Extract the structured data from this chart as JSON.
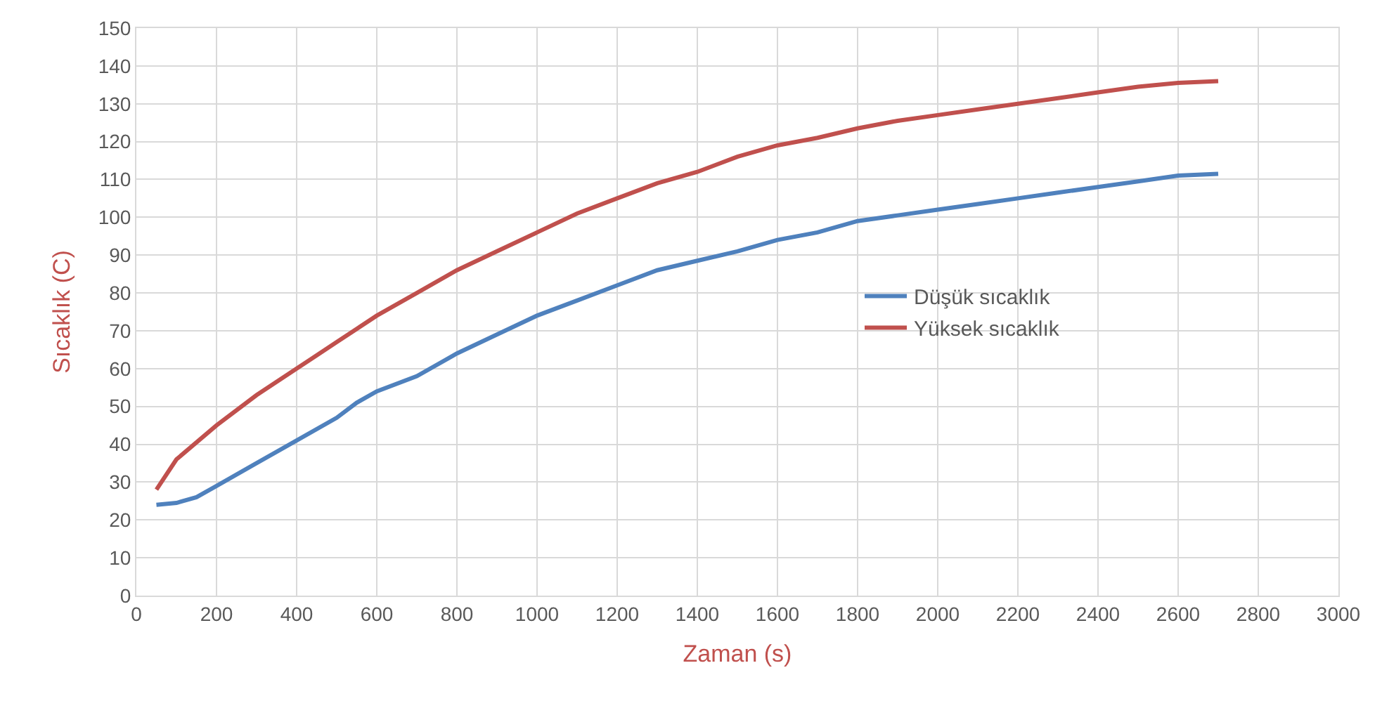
{
  "chart_data": {
    "type": "line",
    "xlabel": "Zaman (s)",
    "ylabel": "Sıcaklık (C)",
    "xlim": [
      0,
      3000
    ],
    "xticks": [
      0,
      200,
      400,
      600,
      800,
      1000,
      1200,
      1400,
      1600,
      1800,
      2000,
      2200,
      2400,
      2600,
      2800,
      3000
    ],
    "ylim": [
      0,
      150
    ],
    "yticks": [
      0,
      10,
      20,
      30,
      40,
      50,
      60,
      70,
      80,
      90,
      100,
      110,
      120,
      130,
      140,
      150
    ],
    "grid": true,
    "legend": "right",
    "marker": "none",
    "line_style": "solid",
    "series": [
      {
        "name": "Düşük sıcaklık",
        "color": "#4f81bd",
        "x": [
          50,
          100,
          150,
          200,
          300,
          400,
          500,
          550,
          600,
          700,
          800,
          900,
          1000,
          1100,
          1200,
          1300,
          1400,
          1500,
          1600,
          1700,
          1800,
          1900,
          2000,
          2100,
          2200,
          2300,
          2400,
          2500,
          2600,
          2700
        ],
        "values": [
          24,
          24.5,
          26,
          29,
          35,
          41,
          47,
          51,
          54,
          58,
          64,
          69,
          74,
          78,
          82,
          86,
          88.5,
          91,
          94,
          96,
          99,
          100.5,
          102,
          103.5,
          105,
          106.5,
          108,
          109.5,
          111,
          111.5
        ]
      },
      {
        "name": "Yüksek sıcaklık",
        "color": "#c0504d",
        "x": [
          50,
          100,
          200,
          300,
          400,
          500,
          600,
          700,
          800,
          900,
          1000,
          1100,
          1200,
          1300,
          1400,
          1500,
          1600,
          1700,
          1800,
          1900,
          2000,
          2100,
          2200,
          2300,
          2400,
          2500,
          2600,
          2700
        ],
        "values": [
          28,
          36,
          45,
          53,
          60,
          67,
          74,
          80,
          86,
          91,
          96,
          101,
          105,
          109,
          112,
          116,
          119,
          121,
          123.5,
          125.5,
          127,
          128.5,
          130,
          131.5,
          133,
          134.5,
          135.5,
          136
        ]
      }
    ]
  }
}
